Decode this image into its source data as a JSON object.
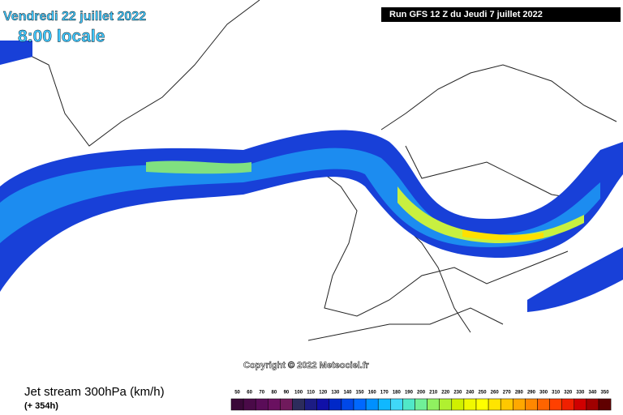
{
  "header": {
    "date": "Vendredi 22 juillet 2022",
    "time": "8:00 locale",
    "run": "Run GFS 12 Z du Jeudi 7 juillet 2022"
  },
  "copyright": "Copyright © 2022 Meteociel.fr",
  "footer": {
    "title": "Jet stream 300hPa (km/h)",
    "subtitle": "(+ 354h)"
  },
  "legend": {
    "labels": [
      50,
      60,
      70,
      80,
      90,
      100,
      110,
      120,
      130,
      140,
      150,
      160,
      170,
      180,
      190,
      200,
      210,
      220,
      230,
      240,
      250,
      260,
      270,
      280,
      290,
      300,
      310,
      320,
      330,
      340,
      350
    ],
    "colors": [
      "#3a0838",
      "#4a0a48",
      "#5a0c58",
      "#6a1060",
      "#701a5c",
      "#2c2c5c",
      "#1c1c84",
      "#1010a8",
      "#0028c8",
      "#0048e8",
      "#0068ff",
      "#0090ff",
      "#10b8ff",
      "#40d8f8",
      "#50e8c8",
      "#70f098",
      "#90f060",
      "#b0f030",
      "#d0f000",
      "#f0f800",
      "#ffff00",
      "#ffe400",
      "#ffc800",
      "#ffa800",
      "#ff8800",
      "#ff6400",
      "#ff4000",
      "#f02000",
      "#d00000",
      "#a00000",
      "#600000"
    ]
  }
}
